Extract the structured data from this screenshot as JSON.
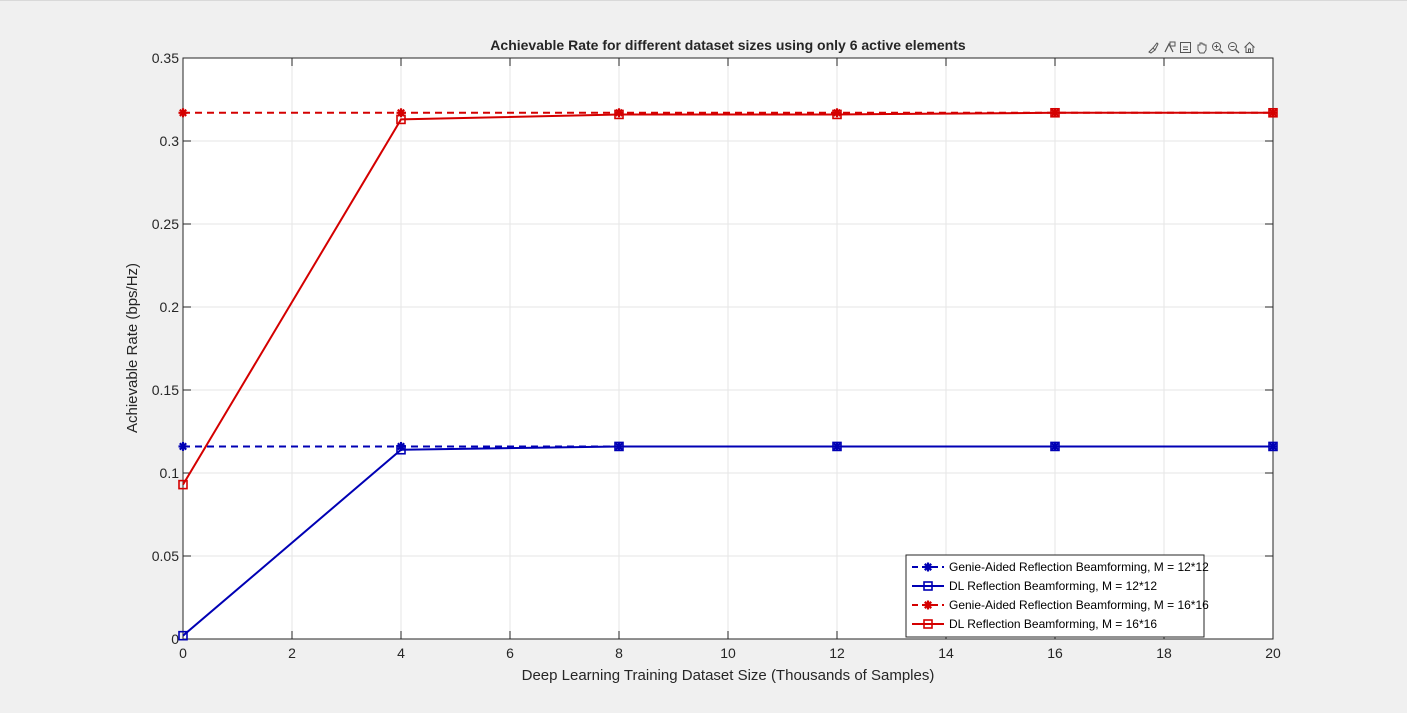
{
  "toolbar": {
    "icons": [
      "brush-icon",
      "data-tips-icon",
      "save-icon",
      "pan-icon",
      "zoom-in-icon",
      "zoom-out-icon",
      "home-icon"
    ]
  },
  "chart_data": {
    "type": "line",
    "title": "Achievable Rate for different dataset sizes using only 6 active elements",
    "xlabel": "Deep Learning Training Dataset Size (Thousands of Samples)",
    "ylabel": "Achievable Rate (bps/Hz)",
    "xlim": [
      0,
      20
    ],
    "ylim": [
      0,
      0.35
    ],
    "xticks": [
      0,
      2,
      4,
      6,
      8,
      10,
      12,
      14,
      16,
      18,
      20
    ],
    "xtick_labels": [
      "0",
      "2",
      "4",
      "6",
      "8",
      "10",
      "12",
      "14",
      "16",
      "18",
      "20"
    ],
    "yticks": [
      0,
      0.05,
      0.1,
      0.15,
      0.2,
      0.25,
      0.3,
      0.35
    ],
    "ytick_labels": [
      "0",
      "0.05",
      "0.1",
      "0.15",
      "0.2",
      "0.25",
      "0.3",
      "0.35"
    ],
    "grid": true,
    "legend_position": "bottom-right",
    "x": [
      0,
      4,
      8,
      12,
      16,
      20
    ],
    "series": [
      {
        "name": "Genie-Aided Reflection Beamforming, M = 12*12",
        "values": [
          0.116,
          0.116,
          0.116,
          0.116,
          0.116,
          0.116
        ],
        "color": "#0000b4",
        "line": "dashed",
        "marker": "asterisk"
      },
      {
        "name": "DL Reflection Beamforming, M = 12*12",
        "values": [
          0.002,
          0.114,
          0.116,
          0.116,
          0.116,
          0.116
        ],
        "color": "#0000b4",
        "line": "solid",
        "marker": "square"
      },
      {
        "name": "Genie-Aided Reflection Beamforming, M = 16*16",
        "values": [
          0.317,
          0.317,
          0.317,
          0.317,
          0.317,
          0.317
        ],
        "color": "#d40000",
        "line": "dashed",
        "marker": "asterisk"
      },
      {
        "name": "DL Reflection Beamforming, M = 16*16",
        "values": [
          0.093,
          0.313,
          0.316,
          0.316,
          0.317,
          0.317
        ],
        "color": "#d40000",
        "line": "solid",
        "marker": "square"
      }
    ]
  }
}
